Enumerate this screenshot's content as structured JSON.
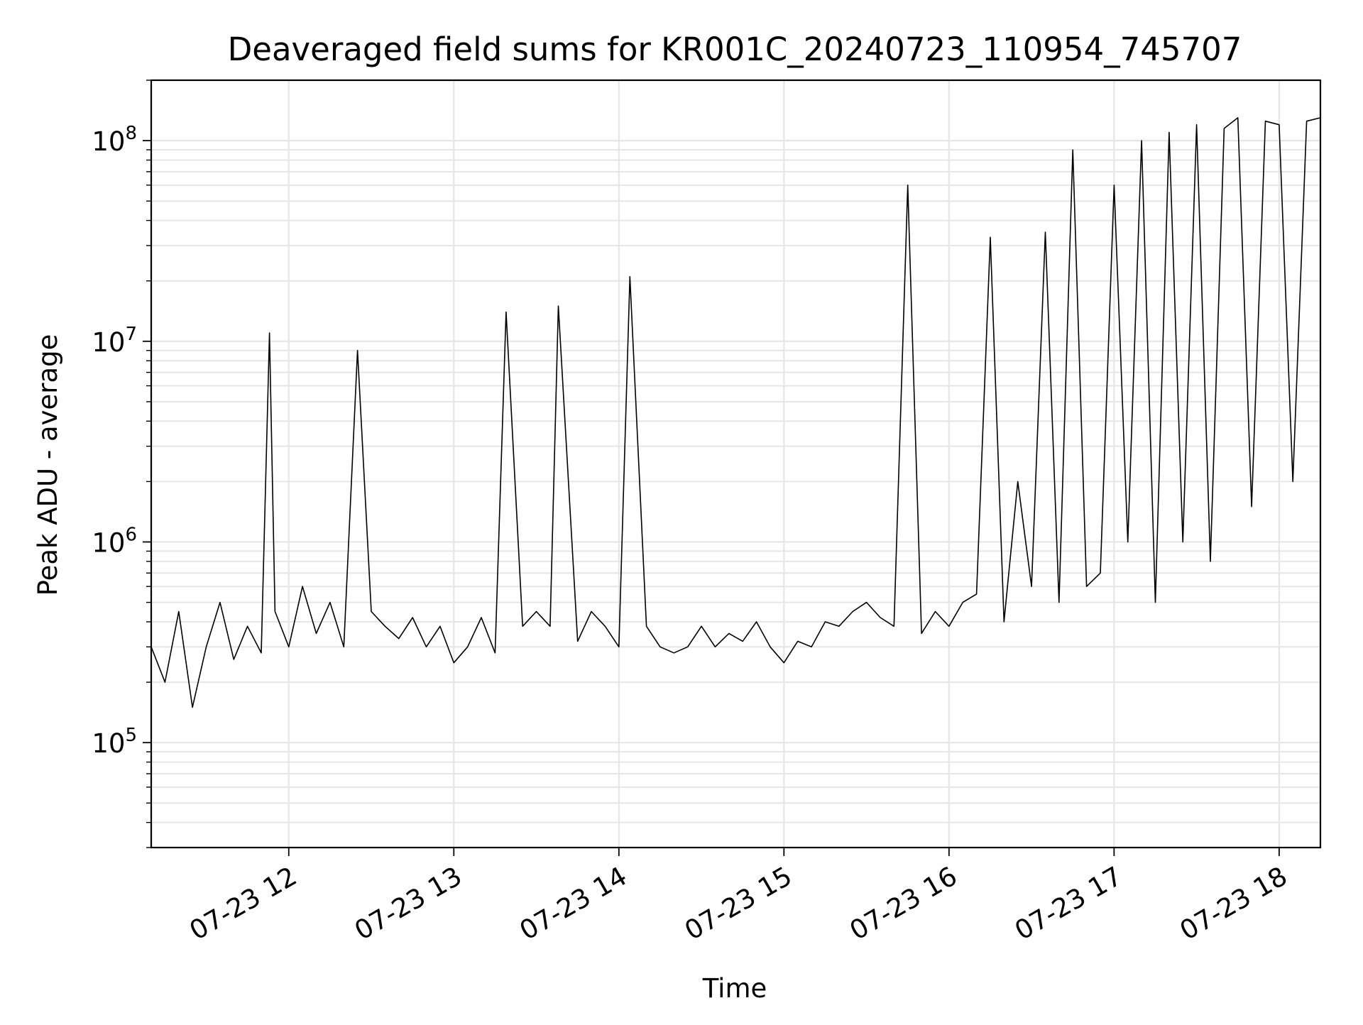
{
  "chart_data": {
    "type": "line",
    "title": "Deaveraged field sums for KR001C_20240723_110954_745707",
    "xlabel": "Time",
    "ylabel": "Peak ADU - average",
    "x_axis_kind": "datetime",
    "xlim": [
      "2024-07-23 11:10",
      "2024-07-23 18:15"
    ],
    "ylim": [
      30000,
      200000000
    ],
    "y_scale": "log",
    "grid": true,
    "grid_minor_y": true,
    "line_color": "#000000",
    "x_ticks": [
      {
        "value": "2024-07-23 12:00",
        "label": "07-23 12"
      },
      {
        "value": "2024-07-23 13:00",
        "label": "07-23 13"
      },
      {
        "value": "2024-07-23 14:00",
        "label": "07-23 14"
      },
      {
        "value": "2024-07-23 15:00",
        "label": "07-23 15"
      },
      {
        "value": "2024-07-23 16:00",
        "label": "07-23 16"
      },
      {
        "value": "2024-07-23 17:00",
        "label": "07-23 17"
      },
      {
        "value": "2024-07-23 18:00",
        "label": "07-23 18"
      }
    ],
    "y_ticks": [
      {
        "value": 100000,
        "base": "10",
        "exp": "5"
      },
      {
        "value": 1000000,
        "base": "10",
        "exp": "6"
      },
      {
        "value": 10000000,
        "base": "10",
        "exp": "7"
      },
      {
        "value": 100000000,
        "base": "10",
        "exp": "8"
      }
    ],
    "series": [
      {
        "x": [
          "2024-07-23 11:10",
          "2024-07-23 11:15",
          "2024-07-23 11:20",
          "2024-07-23 11:25",
          "2024-07-23 11:30",
          "2024-07-23 11:35",
          "2024-07-23 11:40",
          "2024-07-23 11:45",
          "2024-07-23 11:50",
          "2024-07-23 11:53",
          "2024-07-23 11:55",
          "2024-07-23 12:00",
          "2024-07-23 12:05",
          "2024-07-23 12:10",
          "2024-07-23 12:15",
          "2024-07-23 12:20",
          "2024-07-23 12:25",
          "2024-07-23 12:30",
          "2024-07-23 12:35",
          "2024-07-23 12:40",
          "2024-07-23 12:45",
          "2024-07-23 12:50",
          "2024-07-23 12:55",
          "2024-07-23 13:00",
          "2024-07-23 13:05",
          "2024-07-23 13:10",
          "2024-07-23 13:15",
          "2024-07-23 13:19",
          "2024-07-23 13:25",
          "2024-07-23 13:30",
          "2024-07-23 13:35",
          "2024-07-23 13:38",
          "2024-07-23 13:45",
          "2024-07-23 13:50",
          "2024-07-23 13:55",
          "2024-07-23 14:00",
          "2024-07-23 14:04",
          "2024-07-23 14:10",
          "2024-07-23 14:15",
          "2024-07-23 14:20",
          "2024-07-23 14:25",
          "2024-07-23 14:30",
          "2024-07-23 14:35",
          "2024-07-23 14:40",
          "2024-07-23 14:45",
          "2024-07-23 14:50",
          "2024-07-23 14:55",
          "2024-07-23 15:00",
          "2024-07-23 15:05",
          "2024-07-23 15:10",
          "2024-07-23 15:15",
          "2024-07-23 15:20",
          "2024-07-23 15:25",
          "2024-07-23 15:30",
          "2024-07-23 15:35",
          "2024-07-23 15:40",
          "2024-07-23 15:45",
          "2024-07-23 15:50",
          "2024-07-23 15:55",
          "2024-07-23 16:00",
          "2024-07-23 16:05",
          "2024-07-23 16:10",
          "2024-07-23 16:15",
          "2024-07-23 16:20",
          "2024-07-23 16:25",
          "2024-07-23 16:30",
          "2024-07-23 16:35",
          "2024-07-23 16:40",
          "2024-07-23 16:45",
          "2024-07-23 16:50",
          "2024-07-23 16:55",
          "2024-07-23 17:00",
          "2024-07-23 17:05",
          "2024-07-23 17:10",
          "2024-07-23 17:15",
          "2024-07-23 17:20",
          "2024-07-23 17:25",
          "2024-07-23 17:30",
          "2024-07-23 17:35",
          "2024-07-23 17:40",
          "2024-07-23 17:45",
          "2024-07-23 17:50",
          "2024-07-23 17:55",
          "2024-07-23 18:00",
          "2024-07-23 18:05",
          "2024-07-23 18:10",
          "2024-07-23 18:15"
        ],
        "y": [
          300000,
          200000,
          450000,
          150000,
          300000,
          500000,
          260000,
          380000,
          280000,
          11000000,
          450000,
          300000,
          600000,
          350000,
          500000,
          300000,
          9000000,
          450000,
          380000,
          330000,
          420000,
          300000,
          380000,
          250000,
          300000,
          420000,
          280000,
          14000000,
          380000,
          450000,
          380000,
          15000000,
          320000,
          450000,
          380000,
          300000,
          21000000,
          380000,
          300000,
          280000,
          300000,
          380000,
          300000,
          350000,
          320000,
          400000,
          300000,
          250000,
          320000,
          300000,
          400000,
          380000,
          450000,
          500000,
          420000,
          380000,
          60000000,
          350000,
          450000,
          380000,
          500000,
          550000,
          33000000,
          400000,
          2000000,
          600000,
          35000000,
          500000,
          90000000,
          600000,
          700000,
          60000000,
          1000000,
          100000000,
          500000,
          110000000,
          1000000,
          120000000,
          800000,
          115000000,
          130000000,
          1500000,
          125000000,
          120000000,
          2000000,
          125000000,
          130000000
        ]
      }
    ]
  }
}
